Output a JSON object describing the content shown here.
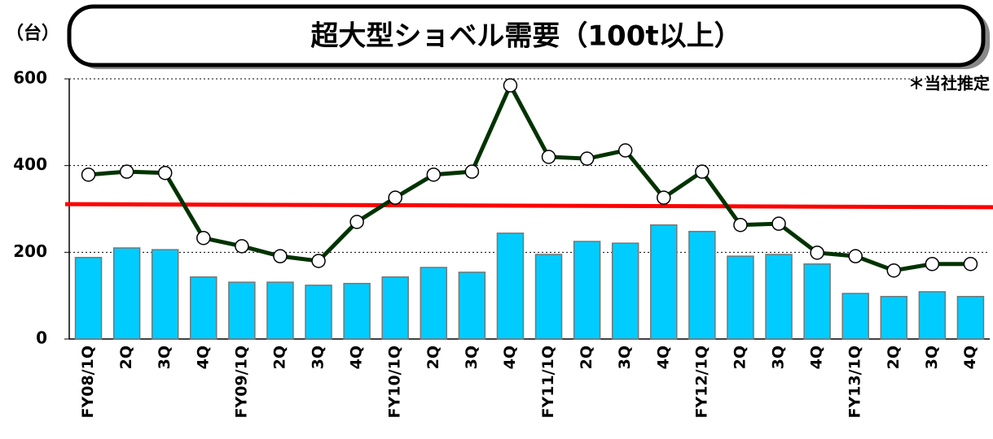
{
  "chart_data": {
    "type": "bar-line",
    "title": "超大型ショベル需要（100t以上）",
    "unit_label": "（台）",
    "annotation": "＊当社推定",
    "categories": [
      "FY08/1Q",
      "2Q",
      "3Q",
      "4Q",
      "FY09/1Q",
      "2Q",
      "3Q",
      "4Q",
      "FY10/1Q",
      "2Q",
      "3Q",
      "4Q",
      "FY11/1Q",
      "2Q",
      "3Q",
      "4Q",
      "FY12/1Q",
      "2Q",
      "3Q",
      "4Q",
      "FY13/1Q",
      "2Q",
      "3Q",
      "4Q"
    ],
    "bars": {
      "color": "#00ccff",
      "values": [
        188,
        210,
        206,
        143,
        131,
        131,
        124,
        128,
        143,
        165,
        154,
        244,
        195,
        225,
        221,
        263,
        248,
        191,
        195,
        173,
        105,
        98,
        109,
        98
      ]
    },
    "line": {
      "color": "#003300",
      "values": [
        379,
        386,
        383,
        233,
        214,
        191,
        180,
        270,
        326,
        379,
        386,
        585,
        420,
        416,
        435,
        326,
        386,
        263,
        266,
        199,
        191,
        158,
        173,
        173
      ]
    },
    "trend": {
      "color": "#ff0000",
      "values": [
        311,
        304
      ]
    },
    "ylim": [
      0,
      600
    ],
    "yticks": [
      0,
      200,
      400,
      600
    ],
    "grid": true
  }
}
